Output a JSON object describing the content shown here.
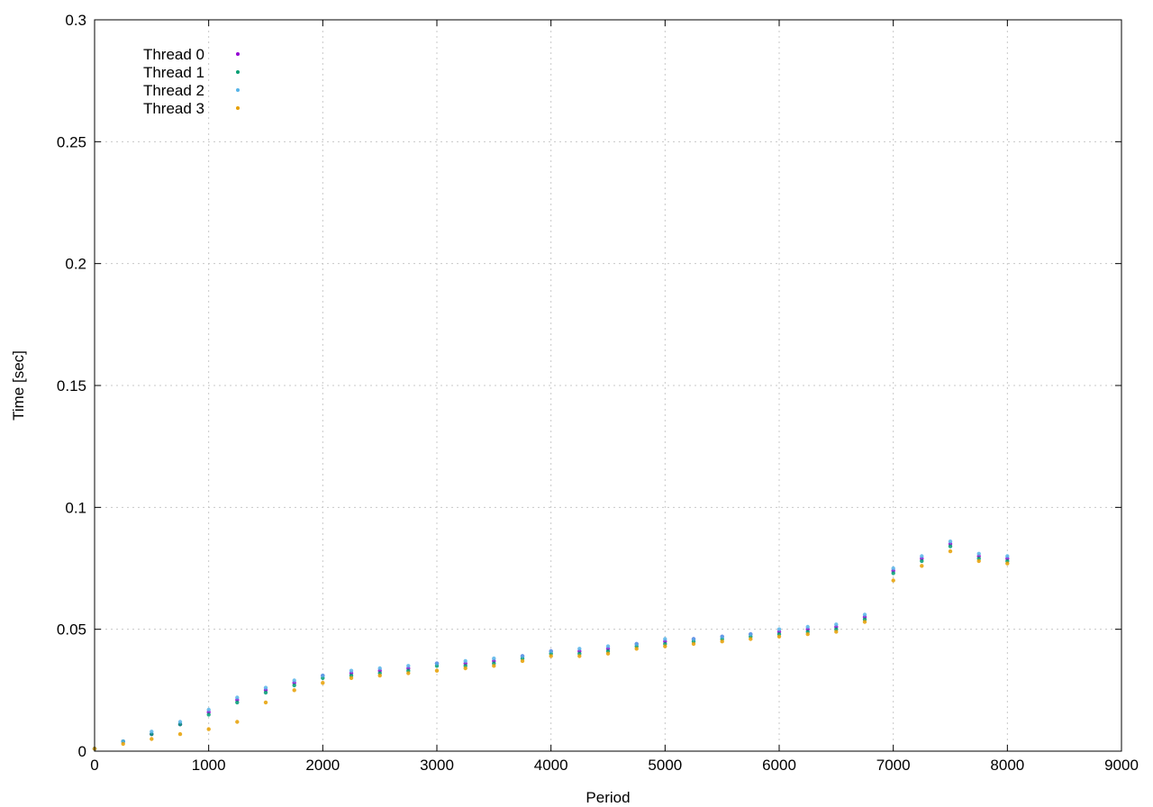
{
  "chart_data": {
    "type": "scatter",
    "title": "",
    "xlabel": "Period",
    "ylabel": "Time [sec]",
    "xlim": [
      0,
      9000
    ],
    "ylim": [
      0,
      0.3
    ],
    "xticks": [
      0,
      1000,
      2000,
      3000,
      4000,
      5000,
      6000,
      7000,
      8000,
      9000
    ],
    "xtick_labels": [
      "0",
      "1000",
      "2000",
      "3000",
      "4000",
      "5000",
      "6000",
      "7000",
      "8000",
      "9000"
    ],
    "yticks": [
      0,
      0.05,
      0.1,
      0.15,
      0.2,
      0.25,
      0.3
    ],
    "ytick_labels": [
      "0",
      "0.05",
      "0.1",
      "0.15",
      "0.2",
      "0.25",
      "0.3"
    ],
    "grid": true,
    "legend_position": "top-left",
    "marker": "dot",
    "series": [
      {
        "name": "Thread 0",
        "color": "#9400d3",
        "x": [
          0,
          250,
          500,
          750,
          1000,
          1250,
          1500,
          1750,
          2000,
          2250,
          2500,
          2750,
          3000,
          3250,
          3500,
          3750,
          4000,
          4250,
          4500,
          4750,
          5000,
          5250,
          5500,
          5750,
          6000,
          6250,
          6500,
          6750,
          7000,
          7250,
          7500,
          7750,
          8000
        ],
        "y": [
          0.001,
          0.004,
          0.007,
          0.011,
          0.016,
          0.021,
          0.025,
          0.028,
          0.031,
          0.032,
          0.033,
          0.034,
          0.036,
          0.036,
          0.037,
          0.039,
          0.041,
          0.041,
          0.042,
          0.044,
          0.045,
          0.046,
          0.047,
          0.048,
          0.049,
          0.05,
          0.051,
          0.055,
          0.074,
          0.079,
          0.085,
          0.08,
          0.079
        ]
      },
      {
        "name": "Thread 1",
        "color": "#009e73",
        "x": [
          0,
          250,
          500,
          750,
          1000,
          1250,
          1500,
          1750,
          2000,
          2250,
          2500,
          2750,
          3000,
          3250,
          3500,
          3750,
          4000,
          4250,
          4500,
          4750,
          5000,
          5250,
          5500,
          5750,
          6000,
          6250,
          6500,
          6750,
          7000,
          7250,
          7500,
          7750,
          8000
        ],
        "y": [
          0.001,
          0.004,
          0.007,
          0.011,
          0.015,
          0.02,
          0.024,
          0.027,
          0.03,
          0.031,
          0.032,
          0.033,
          0.035,
          0.035,
          0.036,
          0.038,
          0.04,
          0.04,
          0.041,
          0.043,
          0.044,
          0.045,
          0.046,
          0.047,
          0.048,
          0.049,
          0.05,
          0.054,
          0.073,
          0.078,
          0.084,
          0.079,
          0.078
        ]
      },
      {
        "name": "Thread 2",
        "color": "#56b4e9",
        "x": [
          0,
          250,
          500,
          750,
          1000,
          1250,
          1500,
          1750,
          2000,
          2250,
          2500,
          2750,
          3000,
          3250,
          3500,
          3750,
          4000,
          4250,
          4500,
          4750,
          5000,
          5250,
          5500,
          5750,
          6000,
          6250,
          6500,
          6750,
          7000,
          7250,
          7500,
          7750,
          8000
        ],
        "y": [
          0.001,
          0.004,
          0.008,
          0.012,
          0.017,
          0.022,
          0.026,
          0.029,
          0.031,
          0.033,
          0.034,
          0.035,
          0.036,
          0.037,
          0.038,
          0.039,
          0.041,
          0.042,
          0.043,
          0.044,
          0.046,
          0.046,
          0.047,
          0.048,
          0.05,
          0.051,
          0.052,
          0.056,
          0.075,
          0.08,
          0.086,
          0.081,
          0.08
        ]
      },
      {
        "name": "Thread 3",
        "color": "#e69f00",
        "x": [
          0,
          250,
          500,
          750,
          1000,
          1250,
          1500,
          1750,
          2000,
          2250,
          2500,
          2750,
          3000,
          3250,
          3500,
          3750,
          4000,
          4250,
          4500,
          4750,
          5000,
          5250,
          5500,
          5750,
          6000,
          6250,
          6500,
          6750,
          7000,
          7250,
          7500,
          7750,
          8000
        ],
        "y": [
          0.001,
          0.003,
          0.005,
          0.007,
          0.009,
          0.012,
          0.02,
          0.025,
          0.028,
          0.03,
          0.031,
          0.032,
          0.033,
          0.034,
          0.035,
          0.037,
          0.039,
          0.039,
          0.04,
          0.042,
          0.043,
          0.044,
          0.045,
          0.046,
          0.047,
          0.048,
          0.049,
          0.053,
          0.07,
          0.076,
          0.082,
          0.078,
          0.077
        ]
      }
    ]
  }
}
